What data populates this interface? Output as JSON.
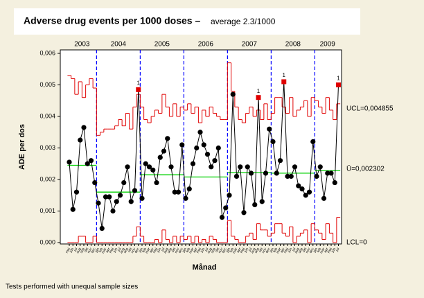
{
  "chart_data": {
    "type": "control",
    "title": "Adverse drug events per 1000 doses –",
    "subtitle": "average 2.3/1000",
    "ylabel": "ADE per dos",
    "xlabel": "Månad",
    "footnote": "Tests performed with unequal sample sizes",
    "ucl_label": "UCL=0,004855",
    "center_label": "Ū=0,002302",
    "lcl_label": "LCL=0",
    "ylim": [
      0,
      0.006
    ],
    "yticks": [
      {
        "value": 0,
        "label": "0,000"
      },
      {
        "value": 0.001,
        "label": "0,001"
      },
      {
        "value": 0.002,
        "label": "0,002"
      },
      {
        "value": 0.003,
        "label": "0,003"
      },
      {
        "value": 0.004,
        "label": "0,004"
      },
      {
        "value": 0.005,
        "label": "0,005"
      },
      {
        "value": 0.006,
        "label": "0,006"
      }
    ],
    "categories": [
      "maj",
      "jun",
      "jul",
      "aug",
      "sep",
      "okt",
      "nov",
      "dec",
      "jan",
      "feb",
      "mar",
      "apr",
      "maj",
      "jun",
      "jul",
      "aug",
      "sep",
      "okt",
      "nov",
      "dec",
      "jan",
      "feb",
      "mar",
      "apr",
      "maj",
      "jun",
      "jul",
      "aug",
      "sep",
      "okt",
      "nov",
      "dec",
      "jan",
      "feb",
      "mar",
      "apr",
      "maj",
      "jun",
      "jul",
      "aug",
      "sep",
      "okt",
      "nov",
      "dec",
      "jan",
      "feb",
      "mar",
      "apr",
      "maj",
      "jun",
      "jul",
      "aug",
      "sep",
      "okt",
      "nov",
      "dec",
      "jan",
      "feb",
      "mar",
      "apr",
      "maj",
      "jun",
      "jul",
      "aug",
      "sep",
      "okt",
      "nov",
      "dec",
      "jan",
      "feb",
      "mar",
      "apr",
      "maj",
      "jun",
      "jul"
    ],
    "values": [
      0.00255,
      0.00105,
      0.0016,
      0.00325,
      0.00365,
      0.0025,
      0.0026,
      0.0019,
      0.00125,
      0.00045,
      0.00145,
      0.00145,
      0.001,
      0.0013,
      0.0015,
      0.0019,
      0.0024,
      0.0013,
      0.00165,
      0.00485,
      0.0014,
      0.0025,
      0.0024,
      0.0023,
      0.0019,
      0.0027,
      0.0029,
      0.0033,
      0.0024,
      0.0016,
      0.0016,
      0.0031,
      0.0014,
      0.0017,
      0.0025,
      0.003,
      0.0035,
      0.0031,
      0.0028,
      0.0024,
      0.0026,
      0.003,
      0.0008,
      0.0011,
      0.0015,
      0.0047,
      0.0021,
      0.0024,
      0.00095,
      0.0024,
      0.0022,
      0.0012,
      0.0046,
      0.0013,
      0.0022,
      0.0036,
      0.0032,
      0.0022,
      0.0026,
      0.0051,
      0.0021,
      0.0021,
      0.0024,
      0.0018,
      0.0017,
      0.0015,
      0.0016,
      0.0032,
      0.0021,
      0.0024,
      0.0014,
      0.0022,
      0.0022,
      0.0019,
      0.005
    ],
    "point_labels": [
      null,
      null,
      null,
      null,
      null,
      null,
      null,
      null,
      null,
      null,
      null,
      null,
      null,
      null,
      null,
      null,
      null,
      null,
      null,
      "1",
      null,
      null,
      null,
      null,
      null,
      null,
      null,
      null,
      null,
      null,
      null,
      null,
      null,
      null,
      null,
      null,
      null,
      null,
      null,
      null,
      null,
      null,
      null,
      null,
      null,
      null,
      null,
      null,
      null,
      null,
      null,
      null,
      "1",
      null,
      null,
      null,
      null,
      null,
      null,
      "1",
      null,
      null,
      null,
      null,
      null,
      null,
      null,
      null,
      null,
      null,
      null,
      null,
      null,
      null,
      "1"
    ],
    "ucl": [
      0.0053,
      0.0052,
      0.0047,
      0.0051,
      0.0046,
      0.005,
      0.0052,
      0.0049,
      0.0034,
      0.0035,
      0.0036,
      0.0036,
      0.0036,
      0.0037,
      0.0039,
      0.0037,
      0.0041,
      0.0036,
      0.0043,
      0.0047,
      0.0043,
      0.0039,
      0.0038,
      0.004,
      0.0042,
      0.0041,
      0.0047,
      0.0043,
      0.004,
      0.0044,
      0.004,
      0.0043,
      0.0042,
      0.0044,
      0.0041,
      0.0043,
      0.0038,
      0.0042,
      0.004,
      0.0043,
      0.0041,
      0.004,
      0.0039,
      0.0039,
      0.0057,
      0.0048,
      0.0043,
      0.0039,
      0.0038,
      0.0041,
      0.0043,
      0.004,
      0.0042,
      0.0039,
      0.0044,
      0.0039,
      0.0041,
      0.0046,
      0.0046,
      0.0043,
      0.0041,
      0.0046,
      0.004,
      0.0042,
      0.0043,
      0.0045,
      0.004,
      0.0046,
      0.0045,
      0.0043,
      0.0041,
      0.0046,
      0.0042,
      0.0039,
      0.0044
    ],
    "lcl": [
      0,
      0,
      0,
      0.0002,
      0.0002,
      0,
      0,
      0.0002,
      0,
      0,
      0,
      0,
      0,
      0,
      0,
      0,
      0,
      0,
      0.0002,
      0.0005,
      0.0002,
      0,
      0,
      0,
      0.0001,
      0,
      0.0004,
      0.0001,
      0,
      0.0002,
      0,
      0.0002,
      0.0001,
      0.0002,
      0,
      0.0002,
      0,
      0.0001,
      0,
      0.0002,
      0.0001,
      0,
      0,
      0,
      0.0007,
      0.0002,
      0.0001,
      0,
      0,
      0.0002,
      0.0003,
      0.0001,
      0.0006,
      0.0004,
      0.0004,
      0.0002,
      0.0003,
      0.0006,
      0.0006,
      0.0003,
      0.0002,
      0.0005,
      0,
      0.0002,
      0.0003,
      0.0004,
      0,
      0.0006,
      0.0004,
      0.0003,
      0.0001,
      0.0006,
      0.0003,
      0,
      0.0008
    ],
    "phases": [
      {
        "label": "2003",
        "length": 8,
        "center": 0.00245
      },
      {
        "label": "2004",
        "length": 12,
        "center": 0.0016
      },
      {
        "label": "2005",
        "length": 12,
        "center": 0.00215
      },
      {
        "label": "2006",
        "length": 12,
        "center": 0.00208
      },
      {
        "label": "2007",
        "length": 12,
        "center": 0.00222
      },
      {
        "label": "2008",
        "length": 12,
        "center": 0.0022
      },
      {
        "label": "2009",
        "length": 7,
        "center": 0.00228
      }
    ],
    "color": "#000000",
    "limit_color": "#e00000",
    "center_color": "#00d000",
    "phase_line_color": "#0000ff",
    "flag_color": "#e00000"
  }
}
